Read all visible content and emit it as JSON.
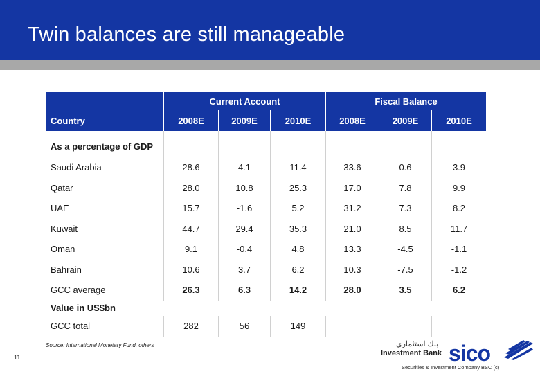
{
  "slide": {
    "title": "Twin balances are still manageable",
    "page_number": "11"
  },
  "table": {
    "group_headers": [
      "Current Account",
      "Fiscal Balance"
    ],
    "column_header_label": "Country",
    "years": [
      "2008E",
      "2009E",
      "2010E",
      "2008E",
      "2009E",
      "2010E"
    ],
    "section1_label": "As a percentage of GDP",
    "rows": [
      {
        "country": "Saudi Arabia",
        "values": [
          "28.6",
          "4.1",
          "11.4",
          "33.6",
          "0.6",
          "3.9"
        ]
      },
      {
        "country": "Qatar",
        "values": [
          "28.0",
          "10.8",
          "25.3",
          "17.0",
          "7.8",
          "9.9"
        ]
      },
      {
        "country": "UAE",
        "values": [
          "15.7",
          "-1.6",
          "5.2",
          "31.2",
          "7.3",
          "8.2"
        ]
      },
      {
        "country": "Kuwait",
        "values": [
          "44.7",
          "29.4",
          "35.3",
          "21.0",
          "8.5",
          "11.7"
        ]
      },
      {
        "country": "Oman",
        "values": [
          "9.1",
          "-0.4",
          "4.8",
          "13.3",
          "-4.5",
          "-1.1"
        ]
      },
      {
        "country": "Bahrain",
        "values": [
          "10.6",
          "3.7",
          "6.2",
          "10.3",
          "-7.5",
          "-1.2"
        ]
      },
      {
        "country": "GCC average",
        "values": [
          "26.3",
          "6.3",
          "14.2",
          "28.0",
          "3.5",
          "6.2"
        ]
      }
    ],
    "section2_label": "Value in US$bn",
    "total_row": {
      "country": "GCC total",
      "values": [
        "282",
        "56",
        "149",
        "",
        "",
        ""
      ]
    }
  },
  "footer": {
    "source": "Source: International Monetary Fund, others"
  },
  "logo": {
    "arabic_name": "بنك استثماري",
    "investment_bank": "Investment Bank",
    "brand": "sico",
    "subtitle": "Securities & Investment Company BSC (c)"
  },
  "colors": {
    "primary_blue": "#1436a3",
    "strip_gray": "#a8a8a8"
  }
}
